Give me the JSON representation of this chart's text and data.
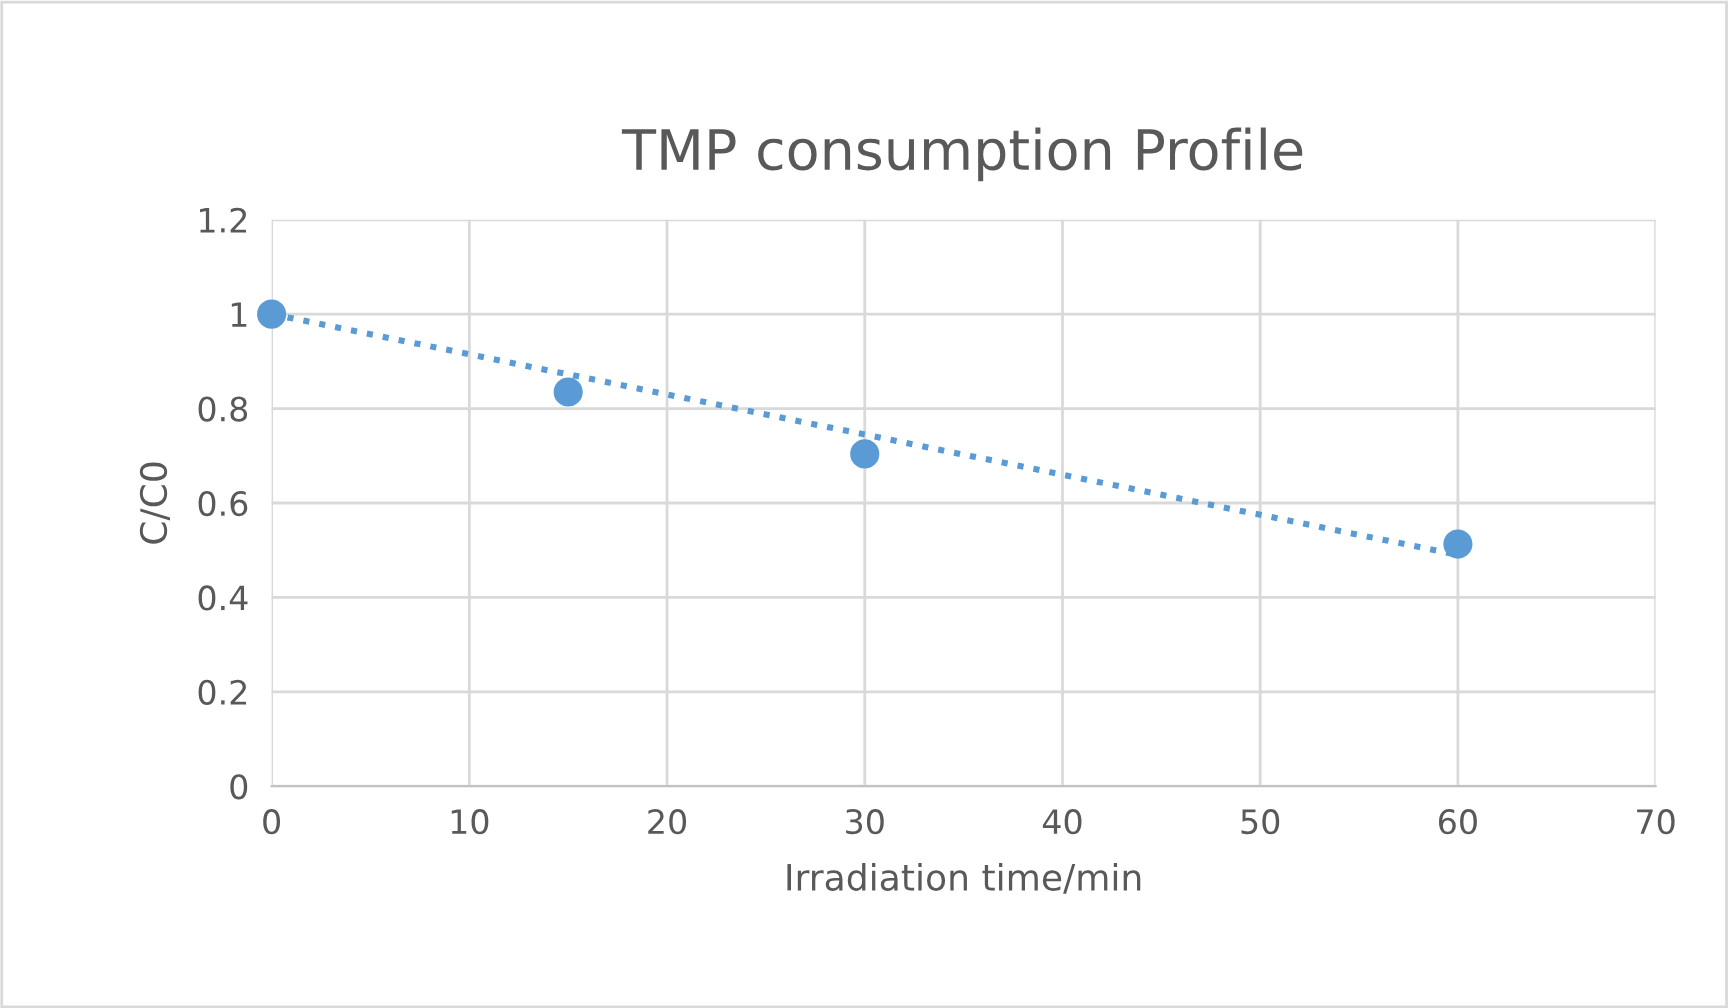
{
  "chart_data": {
    "type": "scatter",
    "title": "TMP consumption Profile",
    "xlabel": "Irradiation time/min",
    "ylabel": "C/C0",
    "x": [
      0,
      15,
      30,
      60
    ],
    "series": [
      {
        "color": "#5b9bd5",
        "values": [
          1.0,
          0.835,
          0.704,
          0.513
        ],
        "marker": "circle"
      },
      {
        "type": "line",
        "color": "#5b9bd5",
        "x": [
          0,
          60
        ],
        "values": [
          1.0,
          0.49
        ],
        "line_style": "dotted",
        "marker": "none"
      }
    ],
    "xlim": [
      0,
      70
    ],
    "xticks": [
      0,
      10,
      20,
      30,
      40,
      50,
      60,
      70
    ],
    "ylim": [
      0,
      1.2
    ],
    "yticks": [
      0,
      0.2,
      0.4,
      0.6,
      0.8,
      1,
      1.2
    ],
    "grid": true,
    "legend": false
  }
}
